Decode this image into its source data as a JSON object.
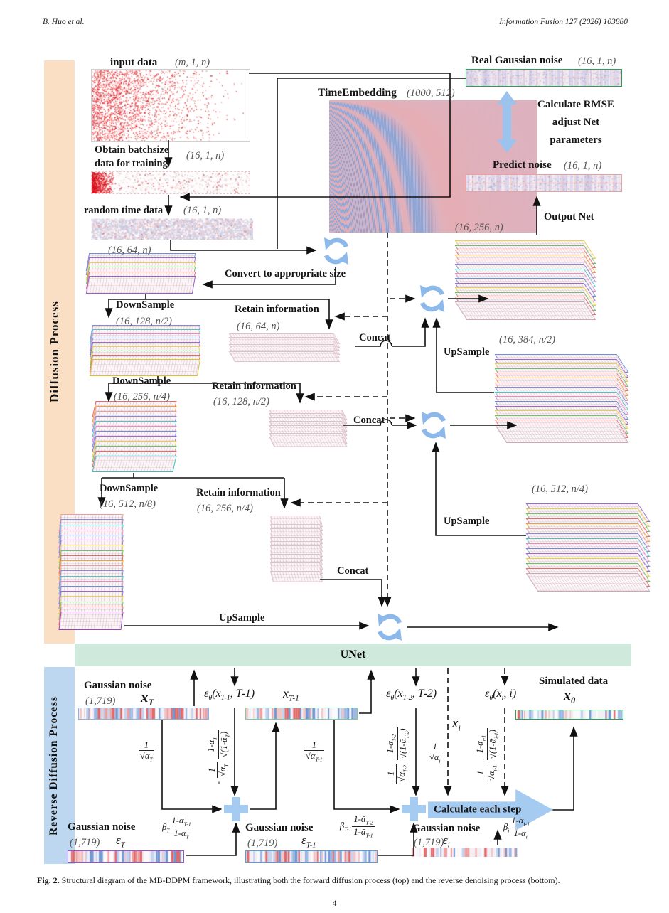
{
  "header": {
    "author": "B. Huo et al.",
    "journal": "Information Fusion 127 (2026) 103880"
  },
  "sidebar": {
    "diffusion": "Diffusion Process",
    "reverse": "Reverse Diffusion Process"
  },
  "unet": "UNet",
  "colors": {
    "sidebar_orange": "#fbdfc5",
    "sidebar_blue": "#bdd7f0",
    "unet_green": "#cfe9dd",
    "icon_blue": "#8cb8ea",
    "real_noise_border": "#2e9e4f",
    "predict_noise_border": "#e8a0a0"
  },
  "top": {
    "input_label": "input data",
    "input_shape": "(m, 1, n)",
    "obtain_line1": "Obtain batchsize",
    "obtain_line2": "data for training",
    "obtain_shape": "(16, 1, n)",
    "random_label": "random time data",
    "random_shape": "(16, 1, n)",
    "te_label": "TimeEmbedding",
    "te_shape": "(1000, 512)",
    "rgn_label": "Real Gaussian noise",
    "rgn_shape": "(16, 1, n)",
    "rmse_line1": "Calculate RMSE",
    "rmse_line2": "adjust Net",
    "rmse_line3": "parameters",
    "predict_label": "Predict noise",
    "predict_shape": "(16, 1, n)",
    "output_net": "Output Net",
    "shape_256n": "(16, 256, n)",
    "shape_64n": "(16, 64, n)",
    "convert": "Convert to appropriate size",
    "downsample": "DownSample",
    "upsample": "UpSample",
    "retain": "Retain information",
    "concat": "Concat",
    "down1_shape": "(16, 128, n/2)",
    "retain1_shape": "(16, 64, n)",
    "down2_shape": "(16, 256, n/4)",
    "retain2_shape": "(16, 128, n/2)",
    "down3_shape": "(16, 512, n/8)",
    "retain3_shape": "(16, 256, n/4)",
    "shape_384": "(16, 384, n/2)",
    "shape_512": "(16, 512, n/4)"
  },
  "rev": {
    "gaussian_noise": "Gaussian noise",
    "shape_1719": "(1,719)",
    "simulated": "Simulated data",
    "calc_step": "Calculate each step",
    "x_T": {
      "m": "x",
      "s": "T"
    },
    "x_T1": {
      "m": "x",
      "s": "T-1"
    },
    "x_i": {
      "m": "x",
      "s": "i"
    },
    "x_0": {
      "m": "x",
      "s": "0"
    },
    "eps_T": {
      "m": "ε",
      "s": "T"
    },
    "eps_T1": {
      "m": "ε",
      "s": "T-1"
    },
    "eps_i": {
      "m": "ε",
      "s": "i"
    },
    "epst1": {
      "xsub": "T-1",
      "tail": ", T-1)"
    },
    "epst2": {
      "xsub": "T-2",
      "tail": ", T-2)"
    },
    "epst3": {
      "xsub": "i",
      "tail": ", i)"
    },
    "coefT": {
      "sub": "T"
    },
    "coefT1": {
      "sub": "T-1"
    },
    "coefI": {
      "sub": "i"
    },
    "rotT": {
      "sub": "T"
    },
    "rotT2": {
      "sub": "T-2"
    },
    "rotI": {
      "sub": "i-1"
    },
    "betaT": {
      "bsub": "T",
      "nsub": "T-1",
      "dsub": "T"
    },
    "betaT1": {
      "bsub": "T-1",
      "nsub": "T-2",
      "dsub": "T-1"
    },
    "betaI": {
      "bsub": "i",
      "nsub": "i-1",
      "dsub": "i"
    }
  },
  "sym": {
    "eps": "ε",
    "theta": "θ",
    "open_x": "(x",
    "one": "1",
    "minus": "-",
    "sqrt": "√",
    "alpha": "α",
    "one_minus_alpha": "1-α",
    "open_bar": "(1-ᾱ",
    "close": ")",
    "beta": "β",
    "bar_base": "1-ᾱ"
  },
  "caption": {
    "fig": "Fig. 2.",
    "text": "Structural diagram of the MB-DDPM framework, illustrating both the forward diffusion process (top) and the reverse denoising process (bottom)."
  },
  "page_number": "4"
}
